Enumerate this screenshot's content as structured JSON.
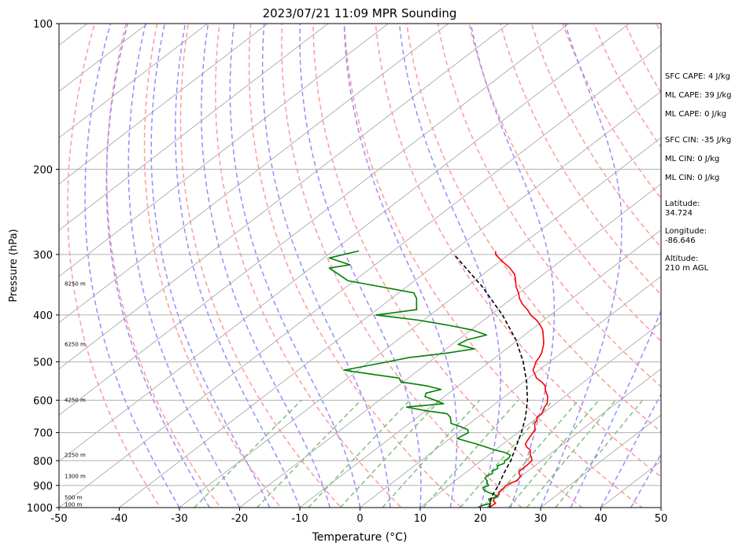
{
  "chart_data": {
    "type": "line",
    "title": "2023/07/21 11:09 MPR Sounding",
    "xlabel": "Temperature (°C)",
    "ylabel": "Pressure (hPa)",
    "xlim": [
      -50,
      50
    ],
    "ylim": [
      1000,
      100
    ],
    "y_scale": "log",
    "skew": "skew-T",
    "grid": true,
    "x_ticks": [
      -50,
      -40,
      -30,
      -20,
      -10,
      0,
      10,
      20,
      30,
      40,
      50
    ],
    "y_ticks": [
      1000,
      900,
      800,
      700,
      600,
      500,
      400,
      300,
      200,
      100
    ],
    "height_labels": [
      {
        "text": "100 m",
        "p": 987
      },
      {
        "text": "500 m",
        "p": 955
      },
      {
        "text": "1300 m",
        "p": 862
      },
      {
        "text": "2250 m",
        "p": 780
      },
      {
        "text": "4250 m",
        "p": 600
      },
      {
        "text": "6250 m",
        "p": 460
      },
      {
        "text": "8250 m",
        "p": 345
      }
    ],
    "series": [
      {
        "color": "#ff0000",
        "p": [
          1000,
          990,
          980,
          970,
          955,
          940,
          930,
          920,
          900,
          890,
          880,
          860,
          850,
          840,
          820,
          800,
          790,
          780,
          770,
          760,
          750,
          740,
          730,
          720,
          710,
          700,
          690,
          680,
          670,
          660,
          650,
          640,
          630,
          620,
          610,
          600,
          590,
          580,
          570,
          560,
          550,
          540,
          530,
          520,
          510,
          500,
          490,
          480,
          470,
          460,
          450,
          440,
          430,
          420,
          410,
          400,
          390,
          380,
          370,
          360,
          350,
          340,
          330,
          320,
          310,
          300,
          295
        ],
        "t": [
          21.5,
          21.5,
          21.6,
          20.8,
          20.2,
          20.3,
          19.7,
          19.7,
          19.5,
          19.7,
          20.3,
          19.8,
          19.0,
          18.6,
          18.6,
          18.4,
          17.8,
          17.0,
          16.4,
          15.8,
          14.6,
          13.8,
          13.4,
          13.1,
          12.8,
          12.5,
          12.2,
          11.5,
          10.8,
          10.5,
          9.8,
          9.9,
          9.4,
          8.9,
          8.6,
          7.9,
          7.2,
          6.2,
          5.2,
          4.4,
          3.0,
          1.3,
          0.2,
          -1.0,
          -1.6,
          -2.3,
          -2.7,
          -3.2,
          -4.0,
          -4.8,
          -5.8,
          -6.9,
          -8.0,
          -9.5,
          -11.2,
          -13.3,
          -15.0,
          -17.0,
          -18.7,
          -20.1,
          -21.8,
          -23.2,
          -24.7,
          -26.9,
          -29.6,
          -32.2,
          -33.0
        ]
      },
      {
        "color": "#008000",
        "p": [
          1000,
          990,
          980,
          970,
          960,
          950,
          940,
          930,
          920,
          910,
          900,
          890,
          880,
          870,
          860,
          850,
          840,
          830,
          820,
          810,
          800,
          790,
          780,
          770,
          760,
          740,
          720,
          700,
          690,
          680,
          670,
          660,
          650,
          640,
          630,
          620,
          610,
          600,
          590,
          580,
          570,
          560,
          550,
          540,
          530,
          520,
          500,
          490,
          480,
          470,
          460,
          450,
          440,
          430,
          420,
          410,
          400,
          390,
          380,
          370,
          360,
          340,
          320,
          315,
          305,
          295
        ],
        "t": [
          19.6,
          19.8,
          20.8,
          20.2,
          19.5,
          20.6,
          19.5,
          18.0,
          16.8,
          16.1,
          16.6,
          15.8,
          15.3,
          14.4,
          14.2,
          14.6,
          14.1,
          14.4,
          13.8,
          14.4,
          13.9,
          14.0,
          13.7,
          12.3,
          9.9,
          5.8,
          1.2,
          1.8,
          1.0,
          -0.9,
          -3.1,
          -3.8,
          -4.6,
          -5.8,
          -10.3,
          -14.0,
          -8.6,
          -10.8,
          -13.2,
          -13.8,
          -12.1,
          -15.4,
          -20.4,
          -21.5,
          -27.0,
          -32.4,
          -27.0,
          -24.4,
          -19.1,
          -15.3,
          -19.0,
          -18.5,
          -16.3,
          -19.6,
          -24.8,
          -30.8,
          -39.0,
          -33.4,
          -34.6,
          -35.8,
          -37.5,
          -51.0,
          -56.9,
          -54.2,
          -59.1,
          -55.7
        ]
      },
      {
        "color": "#000000",
        "dashed": true,
        "p": [
          1000,
          950,
          900,
          850,
          800,
          750,
          700,
          650,
          600,
          550,
          500,
          450,
          400,
          350,
          300
        ],
        "t": [
          21.5,
          19.5,
          18.2,
          16.5,
          14.9,
          12.8,
          10.6,
          7.9,
          4.6,
          0.5,
          -4.4,
          -10.4,
          -18.0,
          -27.4,
          -39.1
        ]
      }
    ]
  },
  "panel": {
    "sfc_cape": "SFC CAPE: 4 J/kg",
    "ml_cape": "ML CAPE: 39 J/kg",
    "ml_cape2": "ML CAPE: 0 J/kg",
    "sfc_cin": "SFC CIN: -35 J/kg",
    "ml_cin": "ML CIN: 0 J/kg",
    "ml_cin2": "ML CIN: 0 J/kg",
    "lat_label": "Latitude:",
    "lat_value": "34.724",
    "lon_label": "Longitude:",
    "lon_value": "-86.646",
    "alt_label": "Altitude:",
    "alt_value": "210 m AGL"
  },
  "colors": {
    "dry_adiabat": "#ff9a9a",
    "moist_adiabat": "#9a8aff",
    "mixing_ratio": "#7fc07f",
    "isotherm": "#a0a0a0"
  }
}
